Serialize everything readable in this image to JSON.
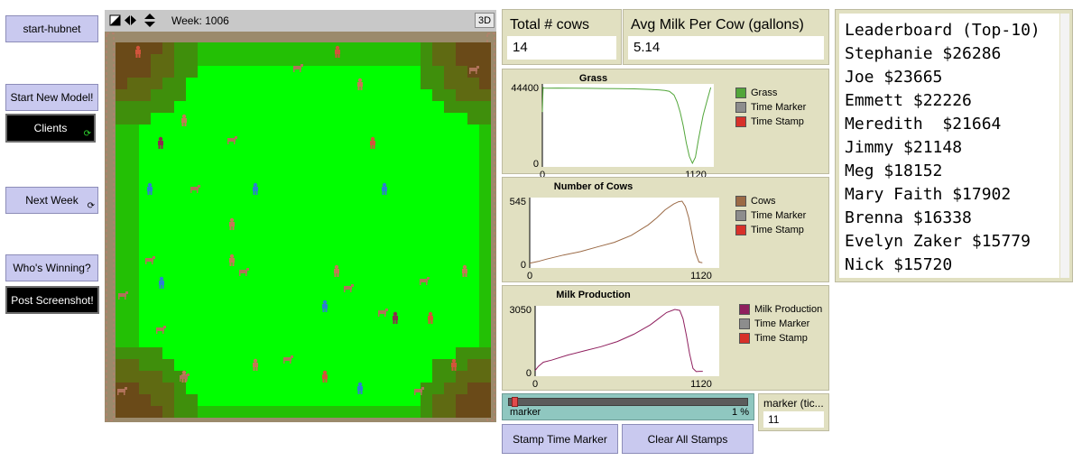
{
  "buttons": {
    "start_hubnet": "start-hubnet",
    "start_new_model": "Start New Model!",
    "clients": "Clients",
    "next_week": "Next Week",
    "whos_winning": "Who's Winning?",
    "post_screenshot": "Post Screenshot!",
    "stamp_time_marker": "Stamp Time Marker",
    "clear_all_stamps": "Clear All Stamps"
  },
  "icons": {
    "forever": "forever-arrows-icon",
    "edit": "edit-icon",
    "play": "step-arrows-icon",
    "speed": "speed-arrows-icon"
  },
  "world": {
    "week_label": "Week: 1006",
    "view_3d": "3D"
  },
  "monitors": {
    "total_cows_label": "Total # cows",
    "total_cows_value": "14",
    "avg_milk_label": "Avg Milk Per Cow (gallons)",
    "avg_milk_value": "5.14",
    "marker_ticks_label": "marker (tic...",
    "marker_ticks_value": "11"
  },
  "slider": {
    "label": "marker",
    "value": "1 %",
    "fraction": 0.01
  },
  "chart_data": [
    {
      "type": "line",
      "title": "Grass",
      "xlim": [
        0,
        1120
      ],
      "ylim": [
        0,
        44400
      ],
      "x_ticks": [
        "0",
        "1120"
      ],
      "y_ticks": [
        "0",
        "44400"
      ],
      "legend": [
        "Grass",
        "Time Marker",
        "Time Stamp"
      ],
      "colors": [
        "#52a63a",
        "#8d8d8d",
        "#d7312a"
      ],
      "series": [
        {
          "name": "Grass",
          "x": [
            0,
            5,
            10,
            30,
            100,
            200,
            300,
            400,
            500,
            600,
            700,
            760,
            800,
            830,
            860,
            880,
            900,
            920,
            940,
            960,
            980,
            1000,
            1020,
            1050,
            1080,
            1100
          ],
          "y": [
            30000,
            44400,
            44100,
            44000,
            44100,
            44000,
            43900,
            43800,
            43700,
            43600,
            43300,
            43000,
            42700,
            42200,
            40000,
            36000,
            30000,
            22000,
            12000,
            4000,
            0,
            3500,
            14000,
            28000,
            38000,
            44400
          ]
        }
      ]
    },
    {
      "type": "line",
      "title": "Number of Cows",
      "xlim": [
        0,
        1120
      ],
      "ylim": [
        0,
        545
      ],
      "x_ticks": [
        "0",
        "1120"
      ],
      "y_ticks": [
        "0",
        "545"
      ],
      "legend": [
        "Cows",
        "Time Marker",
        "Time Stamp"
      ],
      "colors": [
        "#9b6a46",
        "#8d8d8d",
        "#d7312a"
      ],
      "series": [
        {
          "name": "Cows",
          "x": [
            0,
            50,
            100,
            200,
            300,
            400,
            500,
            600,
            700,
            750,
            800,
            850,
            880,
            900,
            920,
            940,
            960,
            980,
            1000,
            1020
          ],
          "y": [
            10,
            25,
            45,
            80,
            110,
            150,
            190,
            250,
            340,
            400,
            470,
            520,
            540,
            545,
            500,
            400,
            250,
            100,
            20,
            14
          ]
        }
      ]
    },
    {
      "type": "line",
      "title": "Milk Production",
      "xlim": [
        0,
        1120
      ],
      "ylim": [
        0,
        3050
      ],
      "x_ticks": [
        "0",
        "1120"
      ],
      "y_ticks": [
        "0",
        "3050"
      ],
      "legend": [
        "Milk Production",
        "Time Marker",
        "Time Stamp"
      ],
      "colors": [
        "#8f1f5e",
        "#8d8d8d",
        "#d7312a"
      ],
      "series": [
        {
          "name": "Milk Production",
          "x": [
            0,
            20,
            50,
            100,
            200,
            300,
            400,
            500,
            600,
            700,
            750,
            800,
            850,
            880,
            900,
            920,
            940,
            960,
            980,
            1000,
            1020
          ],
          "y": [
            100,
            300,
            500,
            600,
            850,
            1050,
            1250,
            1500,
            1850,
            2300,
            2600,
            2900,
            3050,
            3000,
            2600,
            1800,
            900,
            200,
            50,
            60,
            60
          ]
        }
      ]
    }
  ],
  "leaderboard": {
    "title": "Leaderboard (Top-10)",
    "entries": [
      "Stephanie $26286",
      "Joe $23665",
      "Emmett $22226",
      "Meredith  $21664",
      "Jimmy $21148",
      "Meg $18152",
      "Mary Faith $17902",
      "Brenna $16338",
      "Evelyn Zaker $15779",
      "Nick $15720"
    ]
  }
}
